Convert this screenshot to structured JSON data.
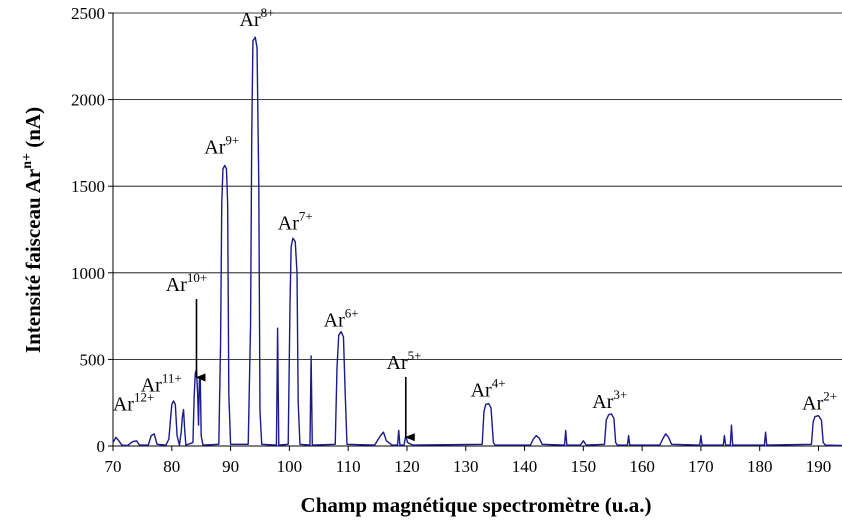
{
  "chart_data": {
    "type": "line",
    "title": "",
    "xlabel": "Champ magnétique spectromètre (u.a.)",
    "ylabel_parts": [
      "Intensité faisceau Ar",
      "n+",
      " (nA)"
    ],
    "xlim": [
      70,
      194
    ],
    "ylim": [
      0,
      2500
    ],
    "xticks": [
      70,
      80,
      90,
      100,
      110,
      120,
      130,
      140,
      150,
      160,
      170,
      180,
      190
    ],
    "yticks": [
      0,
      500,
      1000,
      1500,
      2000,
      2500
    ],
    "grid": "horizontal",
    "legend": "none",
    "line_color": "#1a1a8c",
    "series": [
      {
        "points": [
          [
            70.0,
            20
          ],
          [
            70.5,
            50
          ],
          [
            71.0,
            30
          ],
          [
            71.5,
            5
          ],
          [
            72.5,
            3
          ],
          [
            73.3,
            25
          ],
          [
            74.0,
            30
          ],
          [
            74.5,
            5
          ],
          [
            76.0,
            5
          ],
          [
            76.5,
            60
          ],
          [
            77.0,
            70
          ],
          [
            77.5,
            10
          ],
          [
            79.0,
            5
          ],
          [
            79.5,
            40
          ],
          [
            79.8,
            160
          ],
          [
            80.0,
            240
          ],
          [
            80.3,
            260
          ],
          [
            80.6,
            240
          ],
          [
            80.9,
            60
          ],
          [
            81.3,
            5
          ],
          [
            81.6,
            80
          ],
          [
            81.8,
            170
          ],
          [
            82.0,
            210
          ],
          [
            82.2,
            90
          ],
          [
            82.4,
            5
          ],
          [
            83.6,
            20
          ],
          [
            83.8,
            280
          ],
          [
            84.0,
            420
          ],
          [
            84.2,
            440
          ],
          [
            84.4,
            300
          ],
          [
            84.55,
            120
          ],
          [
            84.7,
            380
          ],
          [
            84.85,
            390
          ],
          [
            85.0,
            60
          ],
          [
            85.3,
            5
          ],
          [
            88.0,
            10
          ],
          [
            88.3,
            600
          ],
          [
            88.5,
            1400
          ],
          [
            88.7,
            1600
          ],
          [
            89.0,
            1620
          ],
          [
            89.3,
            1600
          ],
          [
            89.5,
            1400
          ],
          [
            89.7,
            300
          ],
          [
            90.0,
            10
          ],
          [
            93.0,
            10
          ],
          [
            93.4,
            700
          ],
          [
            93.6,
            1800
          ],
          [
            93.8,
            2340
          ],
          [
            94.2,
            2360
          ],
          [
            94.5,
            2300
          ],
          [
            94.8,
            1500
          ],
          [
            95.0,
            200
          ],
          [
            95.3,
            10
          ],
          [
            97.8,
            5
          ],
          [
            98.0,
            680
          ],
          [
            98.2,
            5
          ],
          [
            99.8,
            10
          ],
          [
            100.1,
            800
          ],
          [
            100.3,
            1150
          ],
          [
            100.6,
            1200
          ],
          [
            101.0,
            1180
          ],
          [
            101.3,
            1000
          ],
          [
            101.5,
            250
          ],
          [
            101.8,
            10
          ],
          [
            103.5,
            5
          ],
          [
            103.7,
            520
          ],
          [
            103.9,
            5
          ],
          [
            107.8,
            10
          ],
          [
            108.1,
            450
          ],
          [
            108.4,
            640
          ],
          [
            108.8,
            660
          ],
          [
            109.2,
            630
          ],
          [
            109.5,
            300
          ],
          [
            109.8,
            10
          ],
          [
            114.5,
            5
          ],
          [
            115.5,
            60
          ],
          [
            116.0,
            80
          ],
          [
            116.5,
            30
          ],
          [
            117.5,
            5
          ],
          [
            118.4,
            5
          ],
          [
            118.6,
            90
          ],
          [
            118.8,
            5
          ],
          [
            119.5,
            5
          ],
          [
            119.8,
            60
          ],
          [
            120.1,
            20
          ],
          [
            121.0,
            5
          ],
          [
            132.8,
            10
          ],
          [
            133.1,
            200
          ],
          [
            133.4,
            240
          ],
          [
            133.9,
            245
          ],
          [
            134.3,
            220
          ],
          [
            134.7,
            20
          ],
          [
            135.0,
            5
          ],
          [
            141.0,
            5
          ],
          [
            141.5,
            40
          ],
          [
            142.0,
            60
          ],
          [
            142.5,
            45
          ],
          [
            143.0,
            10
          ],
          [
            146.8,
            5
          ],
          [
            147.0,
            90
          ],
          [
            147.2,
            5
          ],
          [
            149.5,
            5
          ],
          [
            150.0,
            30
          ],
          [
            150.5,
            5
          ],
          [
            153.6,
            10
          ],
          [
            153.9,
            150
          ],
          [
            154.3,
            180
          ],
          [
            154.8,
            185
          ],
          [
            155.2,
            160
          ],
          [
            155.5,
            20
          ],
          [
            155.8,
            5
          ],
          [
            157.5,
            5
          ],
          [
            157.7,
            60
          ],
          [
            157.9,
            5
          ],
          [
            163.0,
            5
          ],
          [
            163.5,
            40
          ],
          [
            164.0,
            70
          ],
          [
            164.5,
            50
          ],
          [
            165.0,
            10
          ],
          [
            169.8,
            5
          ],
          [
            170.0,
            60
          ],
          [
            170.2,
            5
          ],
          [
            173.8,
            5
          ],
          [
            174.0,
            60
          ],
          [
            174.2,
            5
          ],
          [
            175.0,
            5
          ],
          [
            175.2,
            120
          ],
          [
            175.4,
            5
          ],
          [
            180.8,
            5
          ],
          [
            181.0,
            80
          ],
          [
            181.2,
            5
          ],
          [
            188.8,
            10
          ],
          [
            189.1,
            140
          ],
          [
            189.4,
            170
          ],
          [
            190.0,
            175
          ],
          [
            190.5,
            150
          ],
          [
            190.8,
            20
          ],
          [
            191.2,
            5
          ],
          [
            194.0,
            3
          ]
        ]
      }
    ],
    "annotations": [
      {
        "base": "Ar",
        "sup": "12+",
        "x": 73.5,
        "y": 205,
        "size": 20,
        "supsize": 13,
        "arrow_to": null
      },
      {
        "base": "Ar",
        "sup": "11+",
        "x": 78.2,
        "y": 315,
        "size": 20,
        "supsize": 13,
        "arrow_to": null
      },
      {
        "base": "Ar",
        "sup": "10+",
        "x": 82.5,
        "y": 895,
        "size": 20,
        "supsize": 13,
        "arrow_to": [
          84.2,
          390
        ]
      },
      {
        "base": "Ar",
        "sup": "9+",
        "x": 88.5,
        "y": 1690,
        "size": 20,
        "supsize": 13,
        "arrow_to": null
      },
      {
        "base": "Ar",
        "sup": "8+",
        "x": 94.5,
        "y": 2425,
        "size": 20,
        "supsize": 13,
        "arrow_to": null
      },
      {
        "base": "Ar",
        "sup": "7+",
        "x": 101.0,
        "y": 1250,
        "size": 20,
        "supsize": 13,
        "arrow_to": null
      },
      {
        "base": "Ar",
        "sup": "6+",
        "x": 108.8,
        "y": 690,
        "size": 20,
        "supsize": 13,
        "arrow_to": null
      },
      {
        "base": "Ar",
        "sup": "5+",
        "x": 119.5,
        "y": 445,
        "size": 20,
        "supsize": 13,
        "arrow_to": [
          119.8,
          45
        ]
      },
      {
        "base": "Ar",
        "sup": "4+",
        "x": 133.8,
        "y": 285,
        "size": 20,
        "supsize": 13,
        "arrow_to": null
      },
      {
        "base": "Ar",
        "sup": "3+",
        "x": 154.5,
        "y": 220,
        "size": 20,
        "supsize": 13,
        "arrow_to": null
      },
      {
        "base": "Ar",
        "sup": "2+",
        "x": 190.2,
        "y": 210,
        "size": 20,
        "supsize": 13,
        "arrow_to": null
      }
    ]
  }
}
